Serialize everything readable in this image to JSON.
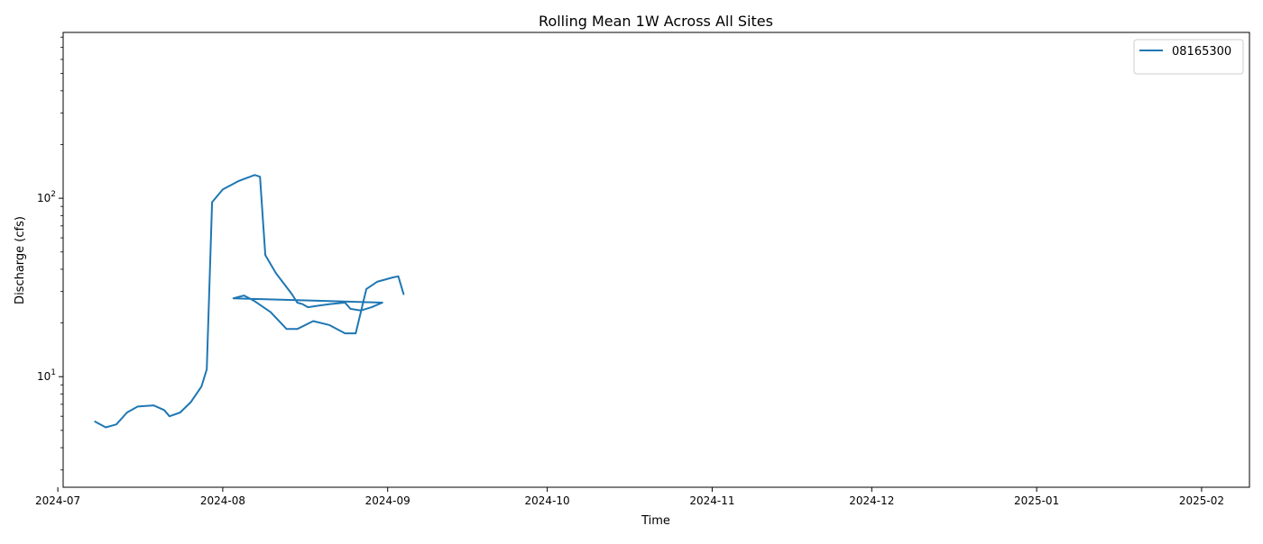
{
  "chart_data": {
    "type": "line",
    "title": "Rolling Mean 1W Across All Sites",
    "xlabel": "Time",
    "ylabel": "Discharge (cfs)",
    "y_scale": "log",
    "ylim": [
      2.4,
      850
    ],
    "xlim": [
      "2024-07-02",
      "2025-02-10"
    ],
    "grid": false,
    "legend_position": "top-right",
    "x_ticks": [
      {
        "date": "2024-07-01",
        "label": "2024-07"
      },
      {
        "date": "2024-08-01",
        "label": "2024-08"
      },
      {
        "date": "2024-09-01",
        "label": "2024-09"
      },
      {
        "date": "2024-10-01",
        "label": "2024-10"
      },
      {
        "date": "2024-11-01",
        "label": "2024-11"
      },
      {
        "date": "2024-12-01",
        "label": "2024-12"
      },
      {
        "date": "2025-01-01",
        "label": "2025-01"
      },
      {
        "date": "2025-02-01",
        "label": "2025-02"
      }
    ],
    "y_ticks": [
      {
        "value": 10,
        "label": "10",
        "base": "10",
        "exp": "1"
      },
      {
        "value": 100,
        "label": "100",
        "base": "10",
        "exp": "2"
      }
    ],
    "series": [
      {
        "name": "08165300",
        "color": "#1f77b4",
        "points": [
          [
            "2024-07-08",
            5.6
          ],
          [
            "2024-07-10",
            5.2
          ],
          [
            "2024-07-12",
            5.4
          ],
          [
            "2024-07-14",
            6.3
          ],
          [
            "2024-07-16",
            6.8
          ],
          [
            "2024-07-19",
            6.9
          ],
          [
            "2024-07-21",
            6.5
          ],
          [
            "2024-07-22",
            6.0
          ],
          [
            "2024-07-24",
            6.3
          ],
          [
            "2024-07-26",
            7.2
          ],
          [
            "2024-07-28",
            8.8
          ],
          [
            "2024-07-29",
            11
          ],
          [
            "2024-07-30",
            95
          ],
          [
            "2024-08-01",
            112
          ],
          [
            "2024-08-04",
            125
          ],
          [
            "2024-08-07",
            135
          ],
          [
            "2024-08-08",
            132
          ],
          [
            "2024-08-09",
            48
          ],
          [
            "2024-08-11",
            38
          ],
          [
            "2024-08-14",
            29
          ],
          [
            "2024-08-15",
            26
          ],
          [
            "2024-08-16",
            25.5
          ],
          [
            "2024-08-17",
            24.5
          ],
          [
            "2024-08-19",
            25
          ],
          [
            "2024-08-21",
            25.5
          ],
          [
            "2024-08-24",
            26
          ],
          [
            "2024-08-25",
            24
          ],
          [
            "2024-08-27",
            23.5
          ],
          [
            "2024-08-29",
            24.5
          ],
          [
            "2024-08-31",
            26
          ],
          [
            "2024-08-03",
            27.5
          ],
          [
            "2024-08-05",
            28.5
          ],
          [
            "2024-08-07",
            26.5
          ],
          [
            "2024-08-10",
            23
          ],
          [
            "2024-08-13",
            18.5
          ],
          [
            "2024-08-15",
            18.5
          ],
          [
            "2024-08-18",
            20.5
          ],
          [
            "2024-08-21",
            19.5
          ],
          [
            "2024-08-24",
            17.5
          ],
          [
            "2024-08-26",
            17.5
          ],
          [
            "2024-08-28",
            31
          ],
          [
            "2024-08-30",
            34
          ],
          [
            "2024-09-02",
            36
          ],
          [
            "2024-09-03",
            36.5
          ],
          [
            "2024-09-04",
            29
          ]
        ],
        "note": ""
      }
    ]
  }
}
